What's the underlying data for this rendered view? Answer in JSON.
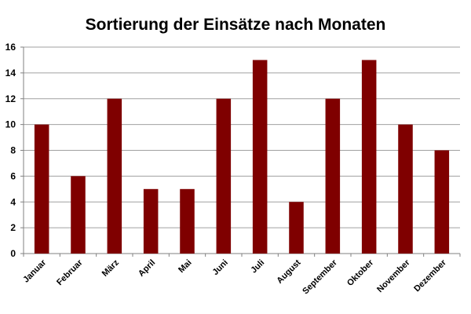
{
  "chart_data": {
    "type": "bar",
    "title": "Sortierung der Einsätze nach Monaten",
    "xlabel": "",
    "ylabel": "",
    "categories": [
      "Januar",
      "Februar",
      "März",
      "April",
      "Mai",
      "Juni",
      "Juli",
      "August",
      "September",
      "Oktober",
      "November",
      "Dezember"
    ],
    "values": [
      10,
      6,
      12,
      5,
      5,
      12,
      15,
      4,
      12,
      15,
      10,
      8
    ],
    "ylim": [
      0,
      16
    ],
    "yticks": [
      0,
      2,
      4,
      6,
      8,
      10,
      12,
      14,
      16
    ],
    "grid": true,
    "legend": "none",
    "bar_color": "#7f0000",
    "grid_color": "#a0a0a0"
  }
}
